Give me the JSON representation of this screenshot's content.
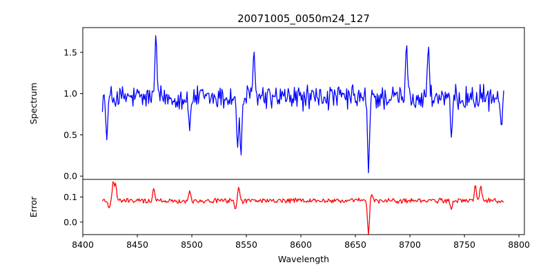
{
  "chart_data": [
    {
      "type": "line",
      "title": "20071005_0050m24_127",
      "xlabel": "",
      "ylabel": "Spectrum",
      "xlim": [
        8400,
        8805
      ],
      "ylim": [
        -0.04,
        1.8
      ],
      "xticks": [
        8400,
        8450,
        8500,
        8550,
        8600,
        8650,
        8700,
        8750,
        8800
      ],
      "yticks": [
        0.0,
        0.5,
        1.0,
        1.5
      ],
      "ytick_labels": [
        "0.0",
        "0.5",
        "1.0",
        "1.5"
      ],
      "grid": false,
      "series": [
        {
          "color": "#0000ff",
          "x_range": [
            8418,
            8786
          ],
          "continuum": 0.95,
          "noise": 0.12,
          "features": [
            {
              "x": 8422,
              "y": 0.44
            },
            {
              "x": 8467,
              "y": 1.72
            },
            {
              "x": 8498,
              "y": 0.55
            },
            {
              "x": 8542,
              "y": 0.35
            },
            {
              "x": 8545,
              "y": 0.24
            },
            {
              "x": 8557,
              "y": 1.52
            },
            {
              "x": 8662,
              "y": 0.04
            },
            {
              "x": 8697,
              "y": 1.6
            },
            {
              "x": 8717,
              "y": 1.58
            },
            {
              "x": 8738,
              "y": 0.47
            },
            {
              "x": 8784,
              "y": 0.58
            }
          ]
        }
      ]
    },
    {
      "type": "line",
      "title": "",
      "xlabel": "Wavelength",
      "ylabel": "Error",
      "xlim": [
        8400,
        8805
      ],
      "ylim": [
        -0.05,
        0.17
      ],
      "xticks": [
        8400,
        8450,
        8500,
        8550,
        8600,
        8650,
        8700,
        8750,
        8800
      ],
      "xtick_labels": [
        "8400",
        "8450",
        "8500",
        "8550",
        "8600",
        "8650",
        "8700",
        "8750",
        "8800"
      ],
      "yticks": [
        0.0,
        0.1
      ],
      "ytick_labels": [
        "0.0",
        "0.1"
      ],
      "grid": false,
      "series": [
        {
          "color": "#ff0000",
          "x_range": [
            8418,
            8786
          ],
          "continuum": 0.085,
          "noise": 0.008,
          "features": [
            {
              "x": 8424,
              "y": 0.055
            },
            {
              "x": 8428,
              "y": 0.168
            },
            {
              "x": 8430,
              "y": 0.155
            },
            {
              "x": 8465,
              "y": 0.135
            },
            {
              "x": 8498,
              "y": 0.125
            },
            {
              "x": 8540,
              "y": 0.05
            },
            {
              "x": 8543,
              "y": 0.14
            },
            {
              "x": 8662,
              "y": -0.05
            },
            {
              "x": 8665,
              "y": 0.11
            },
            {
              "x": 8738,
              "y": 0.05
            },
            {
              "x": 8760,
              "y": 0.15
            },
            {
              "x": 8765,
              "y": 0.145
            }
          ]
        }
      ]
    }
  ]
}
